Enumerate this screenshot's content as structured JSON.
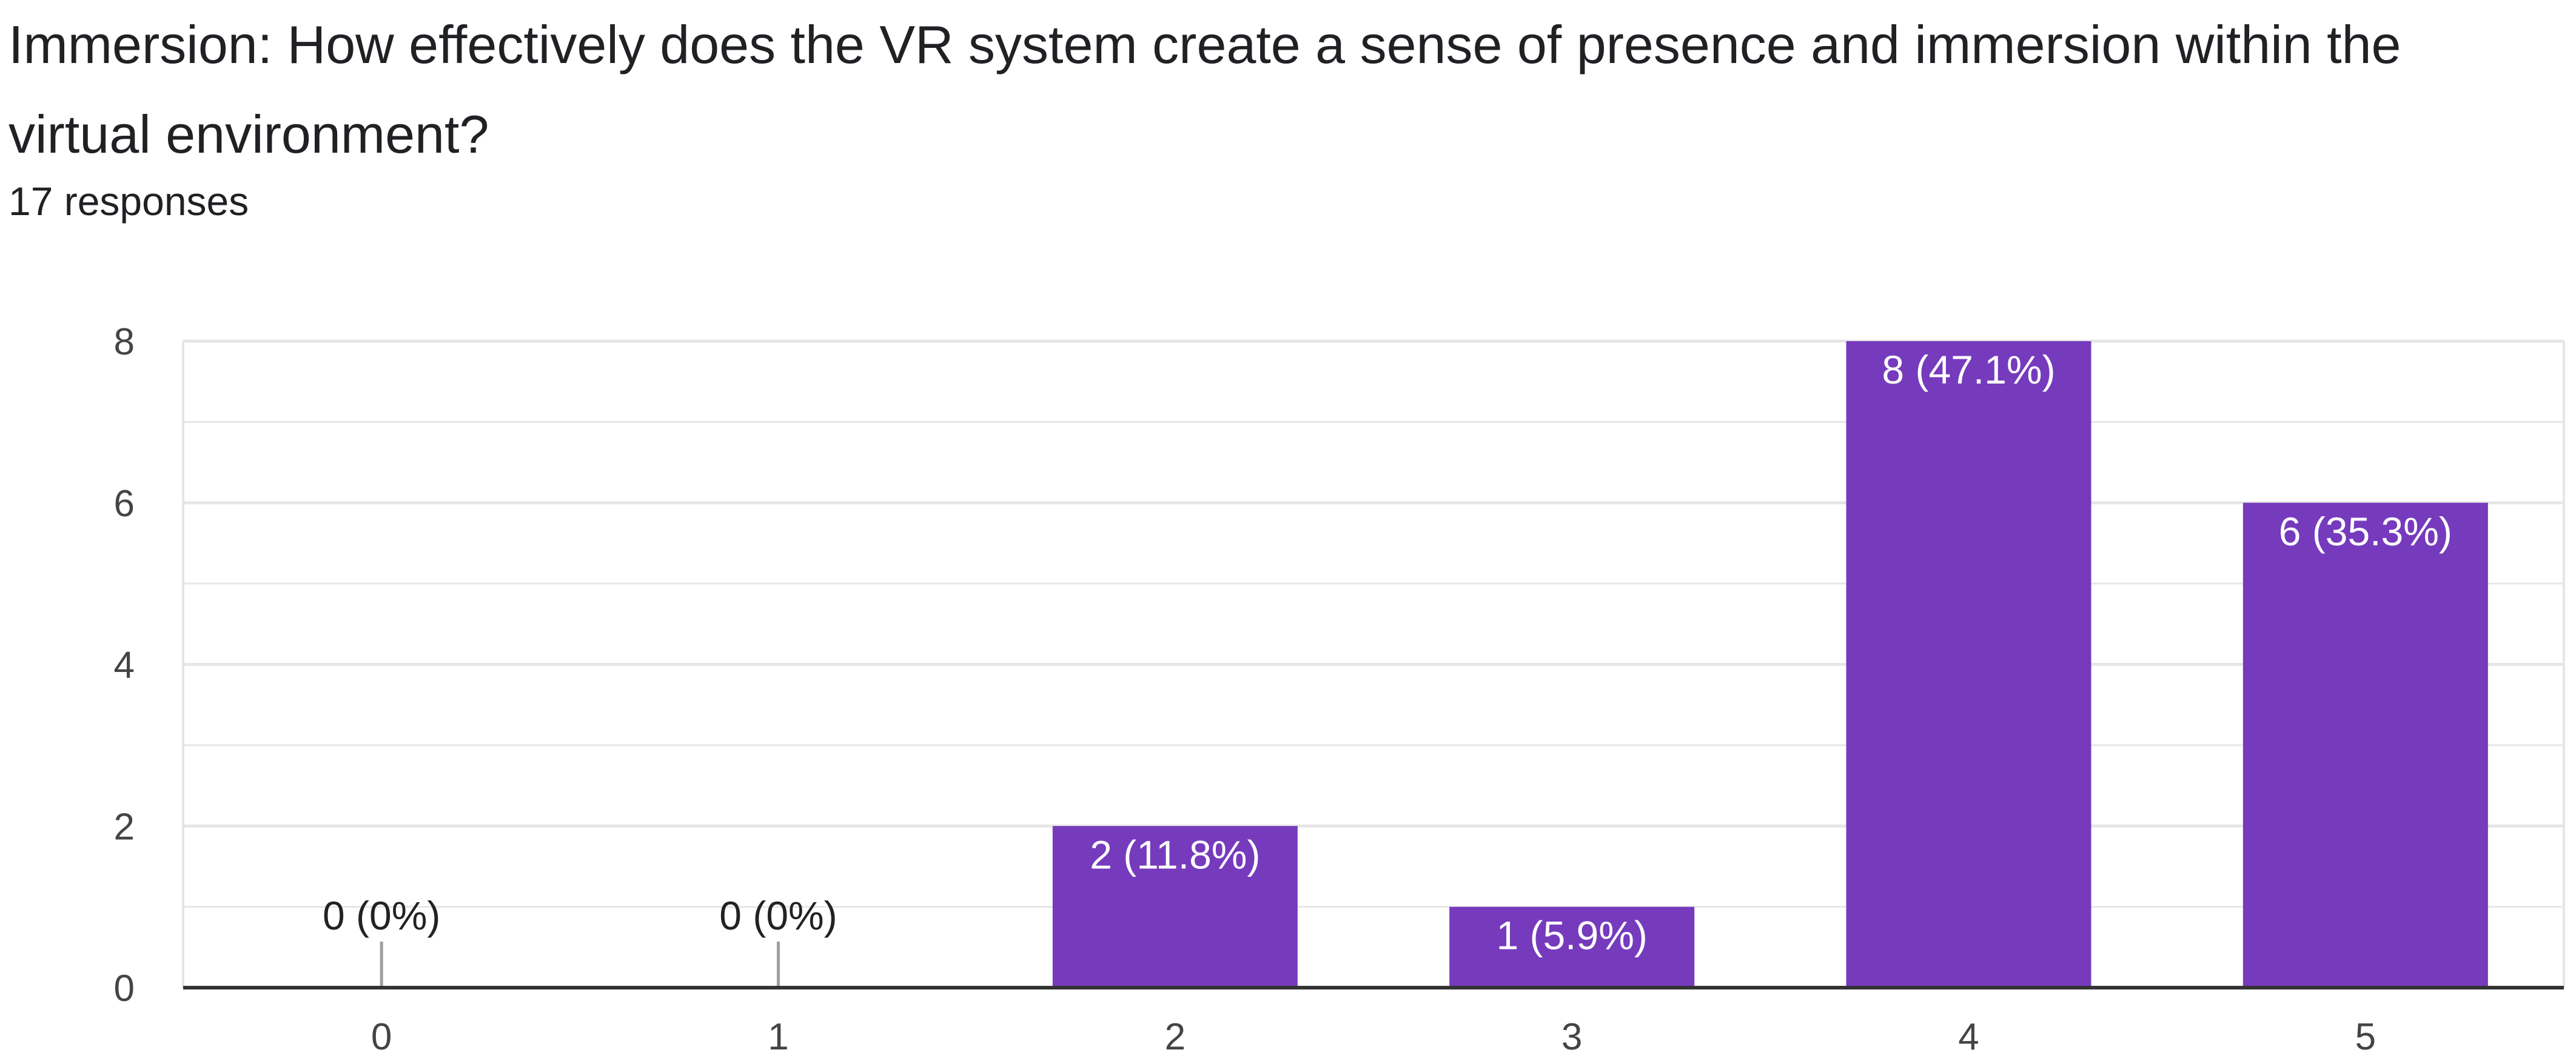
{
  "question": {
    "title": "Immersion: How effectively does the VR system create a sense of presence and immersion within the virtual environment?",
    "responses": "17 responses"
  },
  "colors": {
    "bar": "#763ABD",
    "grid": "#E6E6E6",
    "axis": "#333333",
    "zero_stub": "#9E9E9E"
  },
  "chart_data": {
    "type": "bar",
    "title": "Immersion: How effectively does the VR system create a sense of presence and immersion within the virtual environment?",
    "xlabel": "",
    "ylabel": "",
    "categories": [
      "0",
      "1",
      "2",
      "3",
      "4",
      "5"
    ],
    "values": [
      0,
      0,
      2,
      1,
      8,
      6
    ],
    "data_labels": [
      "0 (0%)",
      "0 (0%)",
      "2 (11.8%)",
      "1 (5.9%)",
      "8 (47.1%)",
      "6 (35.3%)"
    ],
    "ylim": [
      0,
      8
    ],
    "yticks": [
      "0",
      "2",
      "4",
      "6",
      "8"
    ],
    "grid": true,
    "legend": "none"
  }
}
